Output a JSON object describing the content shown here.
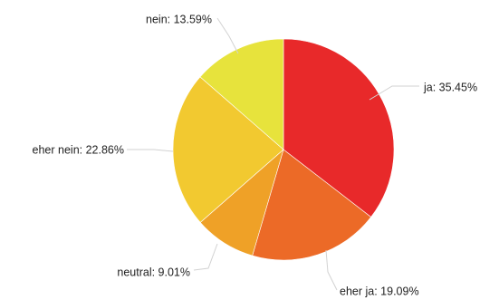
{
  "chart_data": {
    "type": "pie",
    "title": "",
    "legend": "none",
    "slices": [
      {
        "label": "ja",
        "value": 35.45,
        "display": "ja: 35.45%",
        "color": "#e8292a"
      },
      {
        "label": "eher ja",
        "value": 19.09,
        "display": "eher ja: 19.09%",
        "color": "#ec6a27"
      },
      {
        "label": "neutral",
        "value": 9.01,
        "display": "neutral: 9.01%",
        "color": "#efa127"
      },
      {
        "label": "eher nein",
        "value": 22.86,
        "display": "eher nein: 22.86%",
        "color": "#f2c930"
      },
      {
        "label": "nein",
        "value": 13.59,
        "display": "nein: 13.59%",
        "color": "#e7e33c"
      }
    ]
  }
}
